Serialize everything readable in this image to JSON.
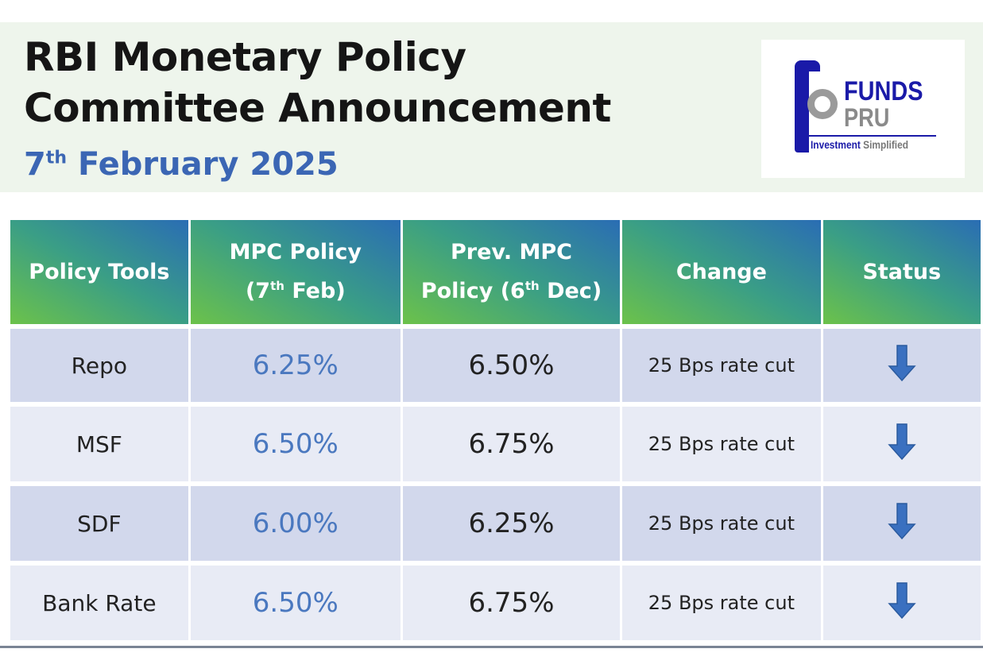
{
  "header": {
    "title_line1": "RBI Monetary Policy",
    "title_line2": "Committee Announcement",
    "date_day": "7",
    "date_suffix": "th",
    "date_rest": "February 2025"
  },
  "logo": {
    "word1": "FUNDS",
    "word2": "PRU",
    "tagline_a": "Investment",
    "tagline_b": "Simplified",
    "colors": {
      "blue": "#1a1aa8",
      "grey": "#8a8a8a"
    }
  },
  "table": {
    "columns": [
      {
        "line1": "Policy Tools"
      },
      {
        "line1": "MPC Policy",
        "line2_pre": "(7",
        "line2_sup": "th",
        "line2_post": " Feb)"
      },
      {
        "line1": "Prev. MPC",
        "line2_pre": "Policy (6",
        "line2_sup": "th",
        "line2_post": " Dec)"
      },
      {
        "line1": "Change"
      },
      {
        "line1": "Status"
      }
    ],
    "rows": [
      {
        "tool": "Repo",
        "current": "6.25%",
        "previous": "6.50%",
        "change": "25 Bps rate cut",
        "status": "down-arrow-icon"
      },
      {
        "tool": "MSF",
        "current": "6.50%",
        "previous": "6.75%",
        "change": "25 Bps rate cut",
        "status": "down-arrow-icon"
      },
      {
        "tool": "SDF",
        "current": "6.00%",
        "previous": "6.25%",
        "change": "25 Bps rate cut",
        "status": "down-arrow-icon"
      },
      {
        "tool": "Bank Rate",
        "current": "6.50%",
        "previous": "6.75%",
        "change": "25 Bps rate cut",
        "status": "down-arrow-icon"
      }
    ],
    "colors": {
      "current_value": "#4a78bf",
      "arrow": "#3a70c0",
      "row_dark": "#d2d8ec",
      "row_light": "#e8ebf5"
    }
  }
}
